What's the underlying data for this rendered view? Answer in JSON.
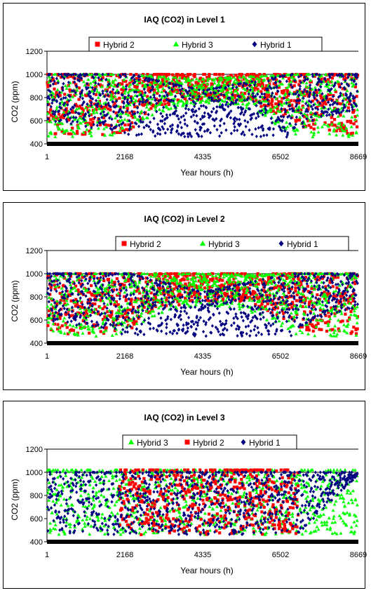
{
  "chart_data": [
    {
      "type": "scatter",
      "title": "IAQ (CO2) in Level 1",
      "xlabel": "Year hours (h)",
      "ylabel": "CO2 (ppm)",
      "xlim": [
        1,
        8669
      ],
      "ylim": [
        400,
        1200
      ],
      "x_ticks": [
        "1",
        "2168",
        "4335",
        "6502",
        "8669"
      ],
      "y_ticks": [
        "400",
        "600",
        "800",
        "1000",
        "1200"
      ],
      "grid": false,
      "legend": {
        "placement": "top-center",
        "order": [
          "Hybrid 2",
          "Hybrid 3",
          "Hybrid 1"
        ]
      },
      "series": [
        {
          "name": "Hybrid 2",
          "color": "#ff0000",
          "marker": "square",
          "bands": [
            {
              "x": 1,
              "low": 480,
              "high": 1000
            },
            {
              "x": 2168,
              "low": 480,
              "high": 1000
            },
            {
              "x": 3000,
              "low": 720,
              "high": 1000
            },
            {
              "x": 4335,
              "low": 780,
              "high": 1000
            },
            {
              "x": 5600,
              "low": 760,
              "high": 1000
            },
            {
              "x": 6502,
              "low": 640,
              "high": 1000
            },
            {
              "x": 7300,
              "low": 520,
              "high": 1000
            },
            {
              "x": 8669,
              "low": 480,
              "high": 1000
            }
          ]
        },
        {
          "name": "Hybrid 3",
          "color": "#00ff00",
          "marker": "triangle",
          "bands": [
            {
              "x": 1,
              "low": 460,
              "high": 1000
            },
            {
              "x": 1800,
              "low": 460,
              "high": 1000
            },
            {
              "x": 3200,
              "low": 680,
              "high": 980
            },
            {
              "x": 4335,
              "low": 760,
              "high": 960
            },
            {
              "x": 5600,
              "low": 700,
              "high": 980
            },
            {
              "x": 7000,
              "low": 460,
              "high": 1000
            },
            {
              "x": 8669,
              "low": 460,
              "high": 1000
            }
          ]
        },
        {
          "name": "Hybrid 1",
          "color": "#000080",
          "marker": "diamond",
          "bands": [
            {
              "x": 1,
              "low": 600,
              "high": 1000
            },
            {
              "x": 1800,
              "low": 500,
              "high": 1000
            },
            {
              "x": 2300,
              "low": 460,
              "high": 1000
            },
            {
              "x": 4335,
              "low": 460,
              "high": 860
            },
            {
              "x": 6800,
              "low": 460,
              "high": 1000
            },
            {
              "x": 7400,
              "low": 600,
              "high": 1000
            },
            {
              "x": 8669,
              "low": 700,
              "high": 1000
            }
          ]
        }
      ]
    },
    {
      "type": "scatter",
      "title": "IAQ (CO2) in Level 2",
      "xlabel": "Year hours (h)",
      "ylabel": "CO2 (ppm)",
      "xlim": [
        1,
        8669
      ],
      "ylim": [
        400,
        1200
      ],
      "x_ticks": [
        "1",
        "2168",
        "4335",
        "6502",
        "8669"
      ],
      "y_ticks": [
        "400",
        "600",
        "800",
        "1000",
        "1200"
      ],
      "grid": false,
      "legend": {
        "placement": "top-center",
        "order": [
          "Hybrid 2",
          "Hybrid 3",
          "Hybrid 1"
        ]
      },
      "series": [
        {
          "name": "Hybrid 2",
          "color": "#ff0000",
          "marker": "square",
          "bands": [
            {
              "x": 1,
              "low": 480,
              "high": 1000
            },
            {
              "x": 2168,
              "low": 480,
              "high": 1000
            },
            {
              "x": 3000,
              "low": 700,
              "high": 1000
            },
            {
              "x": 4335,
              "low": 760,
              "high": 1000
            },
            {
              "x": 5600,
              "low": 760,
              "high": 1000
            },
            {
              "x": 6502,
              "low": 620,
              "high": 1000
            },
            {
              "x": 7300,
              "low": 500,
              "high": 1000
            },
            {
              "x": 8669,
              "low": 480,
              "high": 1000
            }
          ]
        },
        {
          "name": "Hybrid 3",
          "color": "#00ff00",
          "marker": "triangle",
          "bands": [
            {
              "x": 1,
              "low": 460,
              "high": 1000
            },
            {
              "x": 1800,
              "low": 460,
              "high": 1000
            },
            {
              "x": 3200,
              "low": 660,
              "high": 1000
            },
            {
              "x": 4335,
              "low": 740,
              "high": 1000
            },
            {
              "x": 5600,
              "low": 680,
              "high": 990
            },
            {
              "x": 7000,
              "low": 460,
              "high": 1000
            },
            {
              "x": 8669,
              "low": 460,
              "high": 1000
            }
          ]
        },
        {
          "name": "Hybrid 1",
          "color": "#000080",
          "marker": "diamond",
          "bands": [
            {
              "x": 1,
              "low": 600,
              "high": 1000
            },
            {
              "x": 1800,
              "low": 500,
              "high": 1000
            },
            {
              "x": 2300,
              "low": 460,
              "high": 1000
            },
            {
              "x": 4335,
              "low": 460,
              "high": 840
            },
            {
              "x": 6800,
              "low": 460,
              "high": 1000
            },
            {
              "x": 7400,
              "low": 600,
              "high": 1000
            },
            {
              "x": 8669,
              "low": 700,
              "high": 1000
            }
          ]
        }
      ]
    },
    {
      "type": "scatter",
      "title": "IAQ (CO2) in Level 3",
      "xlabel": "Year hours (h)",
      "ylabel": "CO2 (ppm)",
      "xlim": [
        1,
        8669
      ],
      "ylim": [
        400,
        1200
      ],
      "x_ticks": [
        "1",
        "2168",
        "4335",
        "6502",
        "8669"
      ],
      "y_ticks": [
        "400",
        "600",
        "800",
        "1000",
        "1200"
      ],
      "grid": false,
      "legend": {
        "placement": "top-center",
        "order": [
          "Hybrid 3",
          "Hybrid 2",
          "Hybrid 1"
        ]
      },
      "series": [
        {
          "name": "Hybrid 3",
          "color": "#00ff00",
          "marker": "triangle",
          "bands": [
            {
              "x": 1,
              "low": 460,
              "high": 1020
            },
            {
              "x": 2000,
              "low": 460,
              "high": 1020
            },
            {
              "x": 4335,
              "low": 460,
              "high": 1020
            },
            {
              "x": 7000,
              "low": 460,
              "high": 1020
            },
            {
              "x": 8669,
              "low": 460,
              "high": 1020
            }
          ]
        },
        {
          "name": "Hybrid 2",
          "color": "#ff0000",
          "marker": "square",
          "bands": [
            {
              "x": 2000,
              "low": 460,
              "high": 1020
            },
            {
              "x": 4335,
              "low": 460,
              "high": 1020
            },
            {
              "x": 7000,
              "low": 460,
              "high": 1020
            }
          ]
        },
        {
          "name": "Hybrid 1",
          "color": "#000080",
          "marker": "diamond",
          "bands": [
            {
              "x": 1,
              "low": 480,
              "high": 1000
            },
            {
              "x": 2000,
              "low": 460,
              "high": 1000
            },
            {
              "x": 4335,
              "low": 460,
              "high": 1000
            },
            {
              "x": 7000,
              "low": 460,
              "high": 1000
            },
            {
              "x": 8669,
              "low": 980,
              "high": 1000
            }
          ]
        }
      ]
    }
  ]
}
